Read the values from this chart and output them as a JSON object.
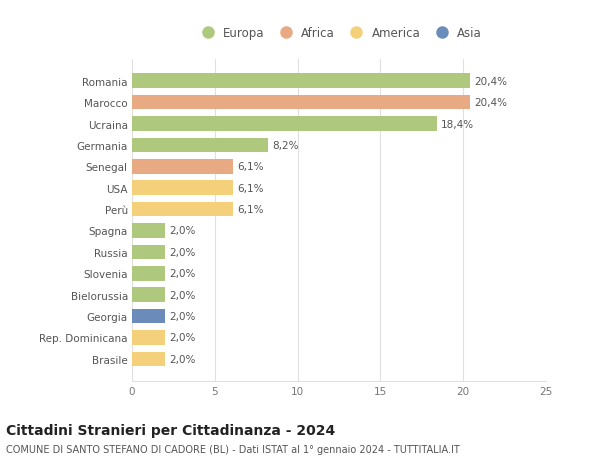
{
  "categories": [
    "Romania",
    "Marocco",
    "Ucraina",
    "Germania",
    "Senegal",
    "USA",
    "Perù",
    "Spagna",
    "Russia",
    "Slovenia",
    "Bielorussia",
    "Georgia",
    "Rep. Dominicana",
    "Brasile"
  ],
  "values": [
    20.4,
    20.4,
    18.4,
    8.2,
    6.1,
    6.1,
    6.1,
    2.0,
    2.0,
    2.0,
    2.0,
    2.0,
    2.0,
    2.0
  ],
  "labels": [
    "20,4%",
    "20,4%",
    "18,4%",
    "8,2%",
    "6,1%",
    "6,1%",
    "6,1%",
    "2,0%",
    "2,0%",
    "2,0%",
    "2,0%",
    "2,0%",
    "2,0%",
    "2,0%"
  ],
  "continents": [
    "Europa",
    "Africa",
    "Europa",
    "Europa",
    "Africa",
    "America",
    "America",
    "Europa",
    "Europa",
    "Europa",
    "Europa",
    "Asia",
    "America",
    "America"
  ],
  "colors": {
    "Europa": "#aec97e",
    "Africa": "#e8aa82",
    "America": "#f5d07a",
    "Asia": "#6b8cba"
  },
  "xlim": [
    0,
    25
  ],
  "xticks": [
    0,
    5,
    10,
    15,
    20,
    25
  ],
  "title": "Cittadini Stranieri per Cittadinanza - 2024",
  "subtitle": "COMUNE DI SANTO STEFANO DI CADORE (BL) - Dati ISTAT al 1° gennaio 2024 - TUTTITALIA.IT",
  "background_color": "#ffffff",
  "grid_color": "#e0e0e0",
  "bar_height": 0.68,
  "label_fontsize": 7.5,
  "tick_fontsize": 7.5,
  "title_fontsize": 10,
  "subtitle_fontsize": 7,
  "legend_order": [
    "Europa",
    "Africa",
    "America",
    "Asia"
  ],
  "legend_fontsize": 8.5
}
